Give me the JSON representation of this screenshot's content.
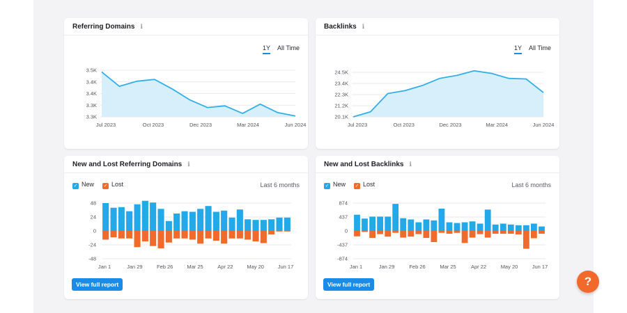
{
  "colors": {
    "line": "#33aee8",
    "area": "#d6effb",
    "new": "#23a8e8",
    "lost": "#f06a2b",
    "button": "#1b8be8",
    "help": "#f26a2b"
  },
  "range_toggle": {
    "active": "1Y",
    "other": "All Time"
  },
  "legend": {
    "new": "New",
    "lost": "Lost"
  },
  "period": "Last 6 months",
  "button_label": "View full report",
  "help_label": "?",
  "info_icon": "info-icon",
  "chart_data": [
    {
      "type": "area",
      "title": "Referring Domains",
      "x_ticks": [
        "Jul 2023",
        "Oct 2023",
        "Dec 2023",
        "Mar 2024",
        "Jun 2024"
      ],
      "y_ticks": [
        "3.5K",
        "3.4K",
        "3.4K",
        "3.3K",
        "3.3K"
      ],
      "values": [
        3500,
        3415,
        3445,
        3456,
        3400,
        3335,
        3290,
        3300,
        3255,
        3310,
        3260,
        3240
      ],
      "ylim": [
        3235,
        3510
      ],
      "grid": true
    },
    {
      "type": "area",
      "title": "Backlinks",
      "x_ticks": [
        "Jul 2023",
        "Oct 2023",
        "Dec 2023",
        "Mar 2024",
        "Jun 2024"
      ],
      "y_ticks": [
        "24.5K",
        "23.4K",
        "22.3K",
        "21.2K",
        "20.1K"
      ],
      "values": [
        20100,
        20600,
        22400,
        22700,
        23200,
        23900,
        24200,
        24650,
        24400,
        23900,
        23850,
        22500
      ],
      "ylim": [
        20100,
        24500
      ],
      "grid": true
    },
    {
      "type": "bar",
      "title": "New and Lost Referring Domains",
      "x_ticks": [
        "Jan 1",
        "Jan 29",
        "Feb 26",
        "Mar 25",
        "Apr 22",
        "May 20",
        "Jun 17"
      ],
      "y_ticks": [
        "48",
        "24",
        "0",
        "-24",
        "-48"
      ],
      "ylim": [
        -48,
        48
      ],
      "series": [
        {
          "name": "New",
          "values": [
            48,
            40,
            41,
            34,
            46,
            52,
            49,
            38,
            17,
            30,
            34,
            33,
            38,
            43,
            33,
            35,
            23,
            37,
            20,
            19,
            19,
            20,
            23,
            23
          ]
        },
        {
          "name": "Lost",
          "values": [
            -15,
            -11,
            -13,
            -13,
            -28,
            -18,
            -26,
            -30,
            -20,
            -13,
            -13,
            -15,
            -22,
            -13,
            -17,
            -22,
            -13,
            -13,
            -15,
            -18,
            -21,
            -6,
            -1,
            -1
          ]
        }
      ]
    },
    {
      "type": "bar",
      "title": "New and Lost Backlinks",
      "x_ticks": [
        "Jan 1",
        "Jan 29",
        "Feb 26",
        "Mar 25",
        "Apr 22",
        "May 20",
        "Jun 17"
      ],
      "y_ticks": [
        "874",
        "437",
        "0",
        "-437",
        "-874"
      ],
      "ylim": [
        -874,
        874
      ],
      "series": [
        {
          "name": "New",
          "values": [
            510,
            390,
            450,
            450,
            450,
            850,
            400,
            360,
            270,
            360,
            330,
            700,
            270,
            250,
            270,
            300,
            230,
            670,
            200,
            230,
            200,
            180,
            180,
            230,
            140
          ]
        },
        {
          "name": "Lost",
          "values": [
            -170,
            -30,
            -220,
            -100,
            -180,
            -60,
            -210,
            -180,
            -100,
            -220,
            -350,
            -60,
            -90,
            -60,
            -380,
            -210,
            -100,
            -210,
            -90,
            -90,
            -90,
            -110,
            -560,
            -230,
            -90
          ]
        }
      ]
    }
  ]
}
